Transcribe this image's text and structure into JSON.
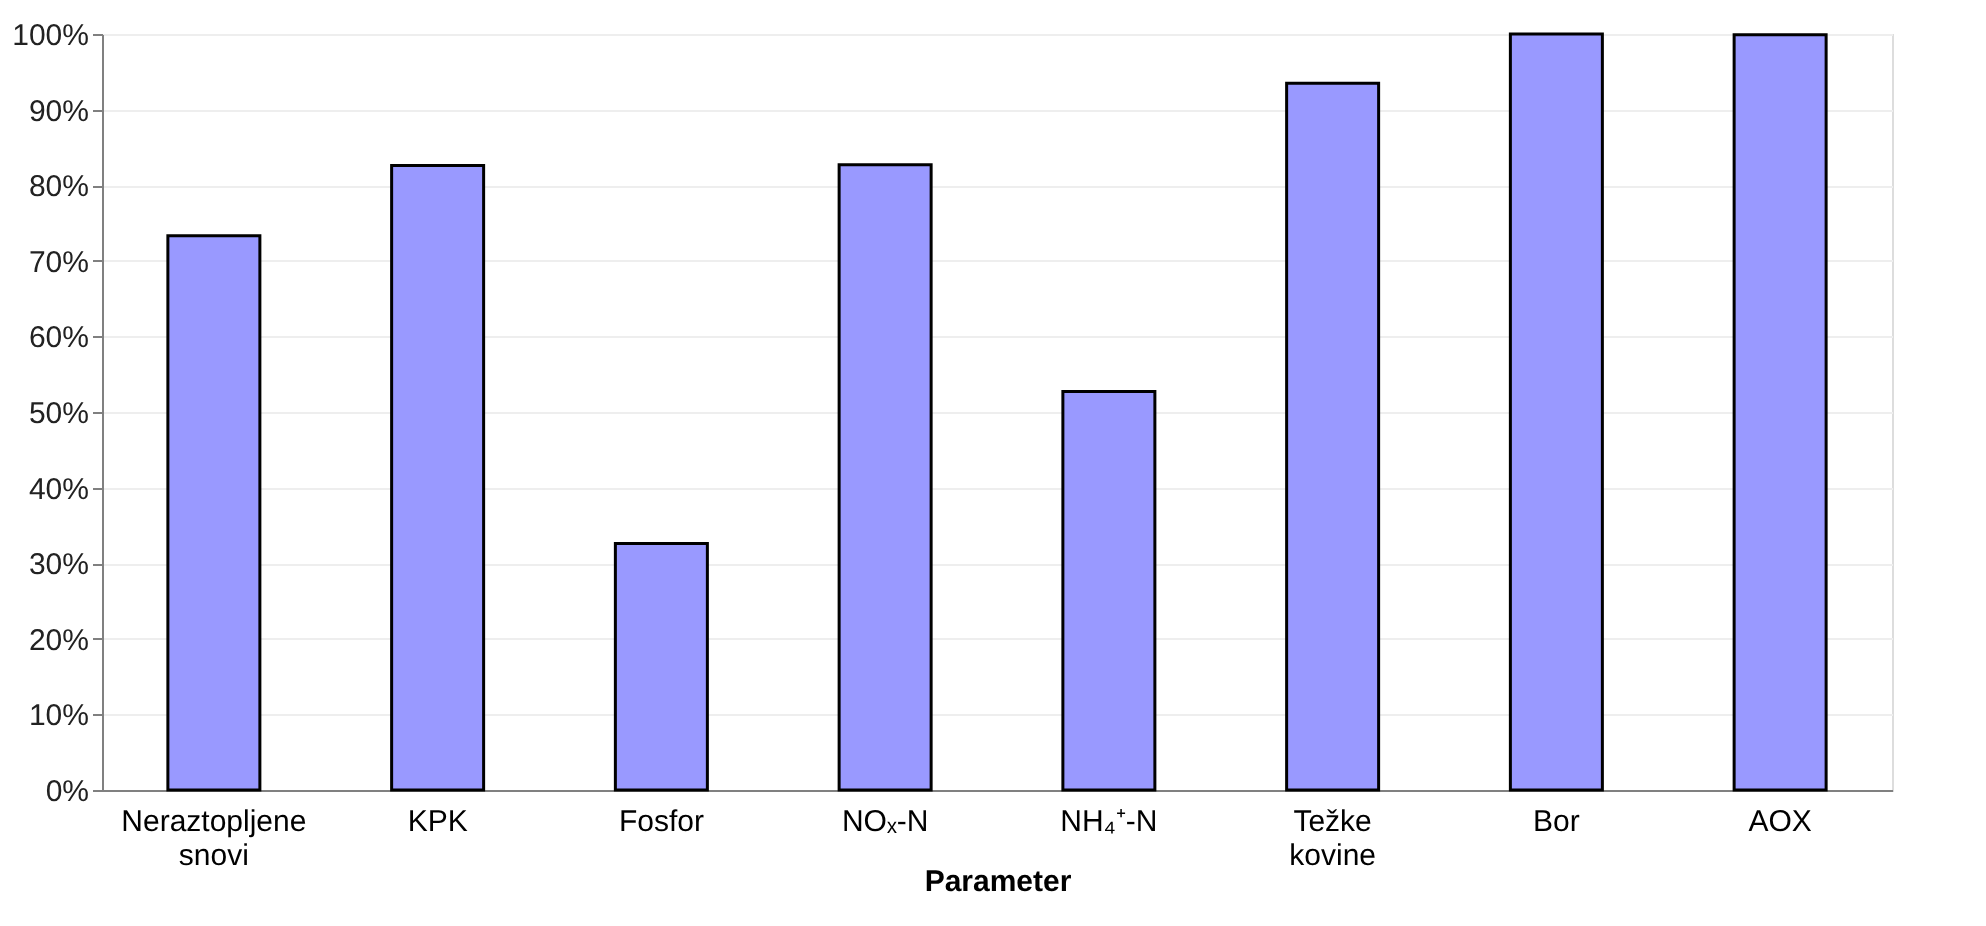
{
  "chart_data": {
    "type": "bar",
    "xlabel": "Parameter",
    "categories": [
      "Neraztopljene snovi",
      "KPK",
      "Fosfor",
      "NOₓ-N",
      "NH₄⁺-N",
      "Težke kovine",
      "Bor",
      "AOX"
    ],
    "values": [
      73.3,
      82.6,
      32.6,
      82.7,
      52.7,
      93.5,
      100,
      99.9
    ],
    "color": "#9999ff",
    "ylim": [
      0,
      100
    ],
    "yticks": [
      {
        "value": 0,
        "label": "0%"
      },
      {
        "value": 10,
        "label": "10%"
      },
      {
        "value": 20,
        "label": "20%"
      },
      {
        "value": 30,
        "label": "30%"
      },
      {
        "value": 40,
        "label": "40%"
      },
      {
        "value": 50,
        "label": "50%"
      },
      {
        "value": 60,
        "label": "60%"
      },
      {
        "value": 70,
        "label": "70%"
      },
      {
        "value": 80,
        "label": "80%"
      },
      {
        "value": 90,
        "label": "90%"
      },
      {
        "value": 100,
        "label": "100%"
      }
    ],
    "grid": "y"
  }
}
